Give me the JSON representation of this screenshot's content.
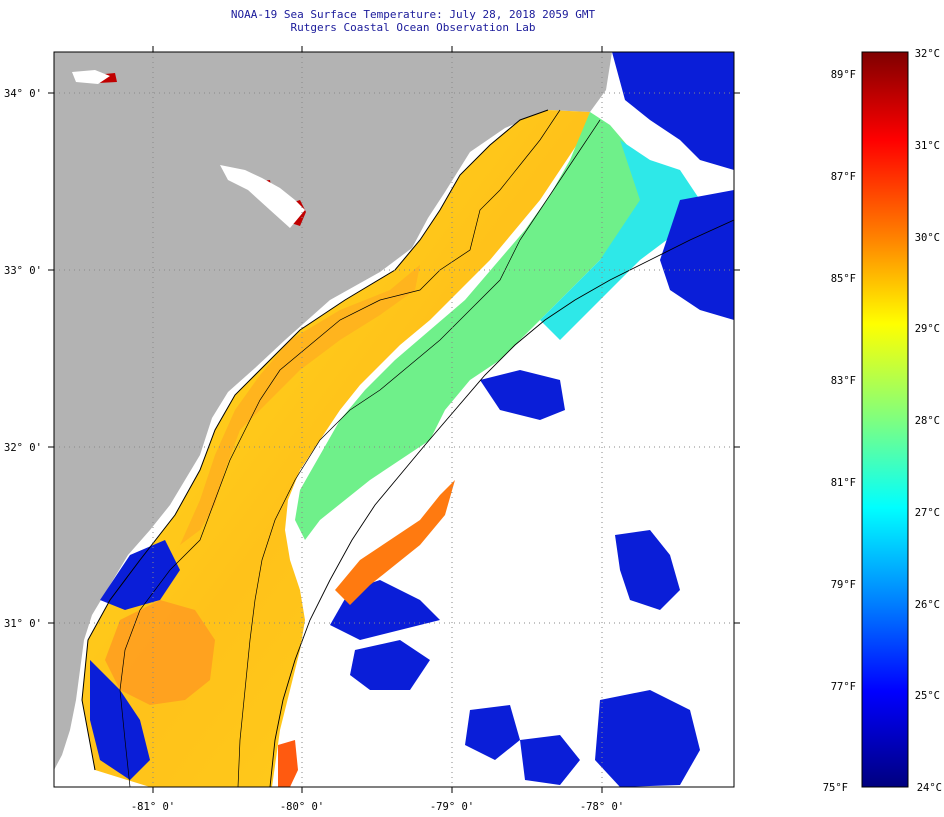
{
  "title": {
    "line1": "NOAA-19 Sea Surface Temperature:  July 28, 2018 2059 GMT",
    "line2": "Rutgers Coastal Ocean Observation Lab"
  },
  "map": {
    "lat_labels": [
      "34° 0'",
      "33° 0'",
      "32° 0'",
      "31° 0'"
    ],
    "lon_labels": [
      "-81° 0'",
      "-80° 0'",
      "-79° 0'",
      "-78° 0'"
    ],
    "colors": {
      "land": "#b3b3b3",
      "cloud": "#ffffff",
      "coast": "#000000"
    }
  },
  "colorbar": {
    "fahrenheit_labels": [
      "89°F",
      "87°F",
      "85°F",
      "83°F",
      "81°F",
      "79°F",
      "77°F",
      "75°F"
    ],
    "celsius_labels": [
      "32°C",
      "31°C",
      "30°C",
      "29°C",
      "28°C",
      "27°C",
      "26°C",
      "25°C",
      "24°C"
    ],
    "range_celsius": [
      24,
      32
    ],
    "colors": [
      "#00007f",
      "#0000ff",
      "#007fff",
      "#00ffff",
      "#7fff7f",
      "#ffff00",
      "#ff7f00",
      "#ff0000",
      "#7f0000"
    ]
  }
}
